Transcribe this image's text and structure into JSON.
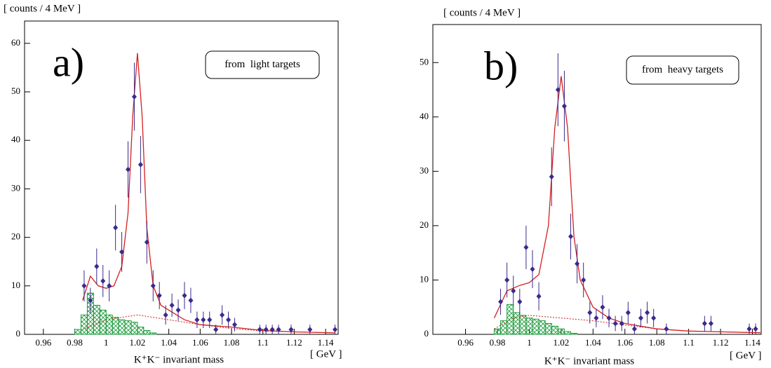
{
  "chart_data": [
    {
      "type": "errorbar",
      "panel_label": "a)",
      "annotation": "from  light targets",
      "y_label": "[ counts / 4 MeV ]",
      "x_unit": "[ GeV ]",
      "x_label": "K⁺K⁻ invariant mass",
      "xlim": [
        0.948,
        1.148
      ],
      "ylim": [
        0,
        64.6
      ],
      "xticks": [
        0.96,
        0.98,
        1,
        1.02,
        1.04,
        1.06,
        1.08,
        1.1,
        1.12,
        1.14
      ],
      "yticks": [
        0,
        10,
        20,
        30,
        40,
        50,
        60
      ],
      "points": {
        "color": "#3b2a8c",
        "x": [
          0.986,
          0.99,
          0.994,
          0.998,
          1.002,
          1.006,
          1.01,
          1.014,
          1.018,
          1.022,
          1.026,
          1.03,
          1.034,
          1.038,
          1.042,
          1.046,
          1.05,
          1.054,
          1.058,
          1.062,
          1.066,
          1.07,
          1.074,
          1.078,
          1.082,
          1.098,
          1.102,
          1.106,
          1.11,
          1.118,
          1.13,
          1.146
        ],
        "values": [
          10,
          7,
          14,
          11,
          10,
          22,
          17,
          34,
          49,
          35,
          19,
          10,
          8,
          4,
          6,
          5,
          8,
          7,
          3,
          3,
          3,
          1,
          4,
          3,
          2,
          1,
          1,
          1,
          1,
          1,
          1,
          1
        ],
        "errors": [
          3.2,
          2.6,
          3.7,
          3.3,
          3.2,
          4.7,
          4.1,
          5.8,
          7,
          5.9,
          4.4,
          3.2,
          2.8,
          2,
          2.4,
          2.2,
          2.8,
          2.6,
          1.7,
          1.7,
          1.7,
          1,
          2,
          1.7,
          1.4,
          1,
          1,
          1,
          1,
          1,
          1,
          1
        ]
      },
      "fit": {
        "color": "#d42020",
        "x": [
          0.985,
          0.99,
          0.995,
          1.0,
          1.005,
          1.01,
          1.014,
          1.017,
          1.02,
          1.023,
          1.026,
          1.03,
          1.035,
          1.04,
          1.05,
          1.06,
          1.08,
          1.1,
          1.12,
          1.146
        ],
        "values": [
          7,
          12,
          10,
          9.5,
          10,
          14,
          25,
          45,
          58,
          45,
          22,
          10,
          6,
          5,
          3,
          2,
          1.5,
          0.8,
          0.5,
          0.3
        ]
      },
      "background": {
        "color": "#d42020",
        "x": [
          0.985,
          1.0,
          1.02,
          1.04,
          1.06,
          1.08,
          1.1,
          1.146
        ],
        "values": [
          1,
          3,
          4,
          3,
          2,
          1.2,
          0.7,
          0.3
        ]
      },
      "histogram": {
        "color": "#1a9a3a",
        "bins": [
          0.98,
          0.984,
          0.988,
          0.992,
          0.996,
          1.0,
          1.004,
          1.008,
          1.012,
          1.016,
          1.02,
          1.024,
          1.028,
          1.032
        ],
        "values": [
          1,
          4,
          8.5,
          6,
          5,
          4,
          3.5,
          3,
          2.8,
          2.5,
          1.5,
          0.8,
          0.3
        ]
      }
    },
    {
      "type": "errorbar",
      "panel_label": "b)",
      "annotation": "from  heavy targets",
      "y_label": "[ counts / 4 MeV ]",
      "x_unit": "[ GeV ]",
      "x_label": "K⁺K⁻ invariant mass",
      "xlim": [
        0.9395,
        1.1455
      ],
      "ylim": [
        0,
        57
      ],
      "xticks": [
        0.96,
        0.98,
        1,
        1.02,
        1.04,
        1.06,
        1.08,
        1.1,
        1.12,
        1.14
      ],
      "yticks": [
        0,
        10,
        20,
        30,
        40,
        50
      ],
      "points": {
        "color": "#3b2a8c",
        "x": [
          0.982,
          0.986,
          0.99,
          0.994,
          0.998,
          1.002,
          1.006,
          1.014,
          1.018,
          1.022,
          1.026,
          1.03,
          1.034,
          1.038,
          1.042,
          1.046,
          1.05,
          1.054,
          1.058,
          1.062,
          1.066,
          1.07,
          1.074,
          1.078,
          1.086,
          1.11,
          1.114,
          1.138,
          1.142
        ],
        "values": [
          6,
          10,
          8,
          6,
          16,
          12,
          7,
          29,
          45,
          42,
          18,
          13,
          10,
          4,
          3,
          5,
          3,
          2,
          2,
          4,
          1,
          3,
          4,
          3,
          1,
          2,
          2,
          1,
          1
        ],
        "errors": [
          2.4,
          3.2,
          2.8,
          2.4,
          4,
          3.5,
          2.6,
          5.4,
          6.7,
          6.5,
          4.2,
          3.6,
          3.2,
          2,
          1.7,
          2.2,
          1.7,
          1.4,
          1.4,
          2,
          1,
          1.7,
          2,
          1.7,
          1,
          1.4,
          1.4,
          1,
          1
        ]
      },
      "fit": {
        "color": "#d42020",
        "x": [
          0.978,
          0.986,
          0.994,
          1.0,
          1.006,
          1.012,
          1.016,
          1.02,
          1.024,
          1.028,
          1.032,
          1.04,
          1.05,
          1.06,
          1.08,
          1.1,
          1.145
        ],
        "values": [
          3,
          8,
          9,
          9.5,
          11,
          20,
          38,
          47.5,
          38,
          18,
          10,
          5,
          3,
          2,
          1,
          0.6,
          0.3
        ]
      },
      "background": {
        "color": "#d42020",
        "x": [
          0.978,
          0.99,
          1.0,
          1.02,
          1.04,
          1.06,
          1.08,
          1.1,
          1.145
        ],
        "values": [
          1,
          3,
          3.5,
          3,
          2.5,
          1.7,
          1,
          0.6,
          0.3
        ]
      },
      "histogram": {
        "color": "#1a9a3a",
        "bins": [
          0.978,
          0.982,
          0.986,
          0.99,
          0.994,
          0.998,
          1.002,
          1.006,
          1.01,
          1.014,
          1.018,
          1.022,
          1.026,
          1.03
        ],
        "values": [
          1,
          2.5,
          5.5,
          4,
          3.5,
          3,
          2.8,
          2.5,
          2,
          1.5,
          1,
          0.5,
          0.2
        ]
      }
    }
  ]
}
